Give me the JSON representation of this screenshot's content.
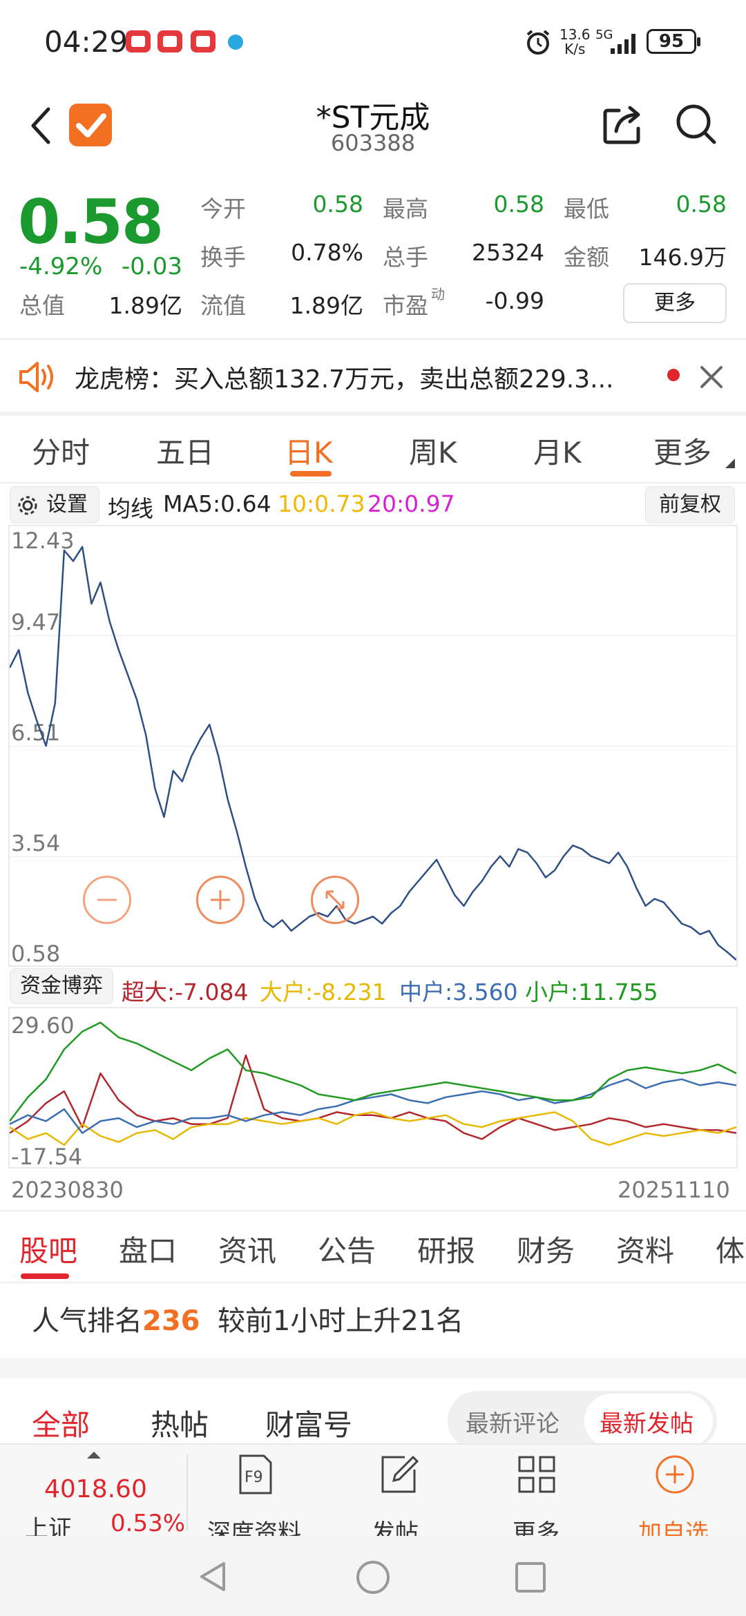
{
  "status_bar": {
    "time": "04:29",
    "net_speed_value": "13.6",
    "net_speed_unit": "K/s",
    "signal": "5G",
    "battery": "95"
  },
  "header": {
    "stock_name": "*ST元成",
    "stock_code": "603388"
  },
  "quote": {
    "price": "0.58",
    "change_pct": "-4.92%",
    "change_abs": "-0.03",
    "fields": {
      "open_label": "今开",
      "open": "0.58",
      "high_label": "最高",
      "high": "0.58",
      "low_label": "最低",
      "low": "0.58",
      "turnover_label": "换手",
      "turnover": "0.78%",
      "volume_label": "总手",
      "volume": "25324",
      "amount_label": "金额",
      "amount": "146.9万",
      "mktcap_label": "总值",
      "mktcap": "1.89亿",
      "float_label": "流值",
      "float": "1.89亿",
      "pe_label": "市盈",
      "pe_sup": "动",
      "pe": "-0.99"
    },
    "more_label": "更多"
  },
  "notice": {
    "text": "龙虎榜：买入总额132.7万元，卖出总额229.3..."
  },
  "period_tabs": [
    "分时",
    "五日",
    "日K",
    "周K",
    "月K",
    "更多"
  ],
  "active_period": "日K",
  "chart_toolbar": {
    "settings_label": "设置",
    "ma_label": "均线",
    "ma5": "MA5:0.64",
    "ma10": "10:0.73",
    "ma20": "20:0.97",
    "adjust_label": "前复权",
    "colors": {
      "ma5": "#222222",
      "ma10": "#f2b705",
      "ma20": "#d61fd6",
      "line": "#2e4f86"
    }
  },
  "fund_bar": {
    "label": "资金博弈",
    "super": "超大:-7.084",
    "large": "大户:-8.231",
    "medium": "中户:3.560",
    "small": "小户:11.755",
    "colors": {
      "super": "#b3262b",
      "large": "#e6b800",
      "medium": "#3b6db3",
      "small": "#1f9a1f"
    }
  },
  "chart_data": [
    {
      "type": "line",
      "x_start": "20230830",
      "x_end": "20251110",
      "yticks": [
        "12.43",
        "9.47",
        "6.51",
        "3.54",
        "0.58"
      ],
      "ylim": [
        0.58,
        12.43
      ],
      "series": [
        {
          "values": [
            8.8,
            9.3,
            8.1,
            7.3,
            6.6,
            7.8,
            12.1,
            11.8,
            12.2,
            10.6,
            11.2,
            10.1,
            9.3,
            8.6,
            7.9,
            6.9,
            5.4,
            4.6,
            5.9,
            5.6,
            6.3,
            6.8,
            7.2,
            6.3,
            5.1,
            4.2,
            3.2,
            2.3,
            1.7,
            1.5,
            1.7,
            1.4,
            1.6,
            1.8,
            1.9,
            1.8,
            2.1,
            1.7,
            1.6,
            1.7,
            1.8,
            1.6,
            1.9,
            2.1,
            2.5,
            2.8,
            3.1,
            3.4,
            2.9,
            2.4,
            2.1,
            2.5,
            2.8,
            3.2,
            3.5,
            3.2,
            3.7,
            3.6,
            3.3,
            2.9,
            3.1,
            3.5,
            3.8,
            3.7,
            3.5,
            3.4,
            3.3,
            3.6,
            3.2,
            2.6,
            2.1,
            2.3,
            2.2,
            1.9,
            1.6,
            1.5,
            1.3,
            1.4,
            1.0,
            0.8,
            0.58
          ]
        }
      ]
    },
    {
      "type": "line",
      "yticks": [
        "29.60",
        "-17.54"
      ],
      "ylim": [
        -17.54,
        29.6
      ],
      "series": [
        {
          "values": [
            -8,
            -4,
            2,
            6,
            -6,
            12,
            3,
            -2,
            -4,
            -3,
            -5,
            -5,
            -3,
            18,
            0,
            -3,
            -4,
            -3,
            -1,
            -2,
            -2,
            -3,
            -1,
            -3,
            -4,
            -8,
            -10,
            -6,
            -3,
            -5,
            -7,
            -6,
            -5,
            -3,
            -4,
            -6,
            -5,
            -6,
            -7,
            -7,
            -8
          ]
        },
        {
          "values": [
            -6,
            -10,
            -8,
            -12,
            -5,
            -9,
            -11,
            -8,
            -7,
            -10,
            -6,
            -5,
            -5,
            -3,
            -4,
            -5,
            -4,
            -3,
            -5,
            -2,
            -1,
            -3,
            -4,
            -3,
            -2,
            -5,
            -6,
            -4,
            -3,
            -2,
            -1,
            -4,
            -10,
            -12,
            -10,
            -8,
            -9,
            -8,
            -7,
            -8,
            -6
          ]
        },
        {
          "values": [
            -5,
            -2,
            -4,
            0,
            -8,
            -4,
            -3,
            -6,
            -4,
            -5,
            -3,
            -3,
            -2,
            -4,
            -2,
            -1,
            -2,
            0,
            1,
            3,
            4,
            5,
            3,
            2,
            4,
            5,
            6,
            5,
            3,
            4,
            2,
            3,
            5,
            8,
            10,
            7,
            9,
            10,
            8,
            9,
            8
          ]
        },
        {
          "values": [
            -4,
            4,
            10,
            20,
            26,
            29,
            24,
            22,
            19,
            16,
            13,
            17,
            20,
            13,
            12,
            10,
            8,
            5,
            4,
            3,
            5,
            6,
            7,
            8,
            9,
            8,
            7,
            6,
            5,
            4,
            3,
            3,
            4,
            10,
            13,
            14,
            13,
            12,
            13,
            15,
            12
          ]
        }
      ]
    }
  ],
  "section_tabs": [
    "股吧",
    "盘口",
    "资讯",
    "公告",
    "研报",
    "财务",
    "资料",
    "体"
  ],
  "active_section": "股吧",
  "popularity": {
    "prefix": "人气排名",
    "rank": "236",
    "suffix": "较前1小时上升21名"
  },
  "post_tabs": [
    "全部",
    "热帖",
    "财富号"
  ],
  "sort_options": [
    "最新评论",
    "最新发帖"
  ],
  "index": {
    "value": "4018.60",
    "name": "上证",
    "change": "0.53%"
  },
  "toolbar": {
    "deep_data": "深度资料",
    "post": "发帖",
    "more": "更多",
    "add_watch": "加自选"
  }
}
